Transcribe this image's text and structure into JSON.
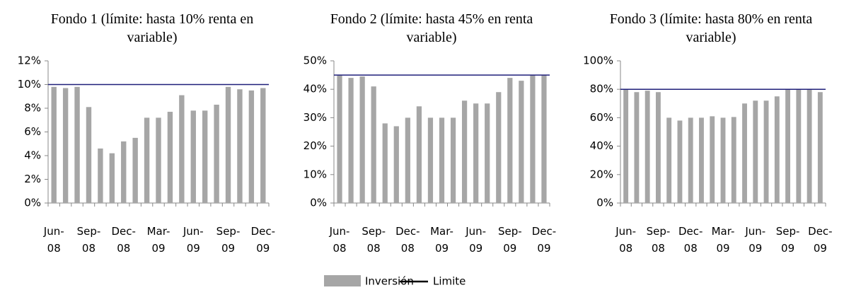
{
  "chart_data": [
    {
      "type": "bar",
      "title": "Fondo 1 (límite: hasta 10% renta en variable)",
      "categories": [
        "Jun-08",
        null,
        null,
        "Sep-08",
        null,
        null,
        "Dec-08",
        null,
        null,
        "Mar-09",
        null,
        null,
        "Jun-09",
        null,
        null,
        "Sep-09",
        null,
        null,
        "Dec-09"
      ],
      "series": [
        {
          "name": "Inversión",
          "color": "#a6a6a6",
          "values": [
            9.8,
            9.7,
            9.8,
            8.1,
            4.6,
            4.2,
            5.2,
            5.5,
            7.2,
            7.2,
            7.7,
            9.1,
            7.8,
            7.8,
            8.3,
            9.8,
            9.6,
            9.5,
            9.7
          ]
        },
        {
          "name": "Limite",
          "type": "line",
          "color": "#1f1f7a",
          "values": [
            10,
            10,
            10,
            10,
            10,
            10,
            10,
            10,
            10,
            10,
            10,
            10,
            10,
            10,
            10,
            10,
            10,
            10,
            10
          ]
        }
      ],
      "ylim": [
        0,
        12
      ],
      "yticks": [
        {
          "value": 0,
          "label": "0%"
        },
        {
          "value": 2,
          "label": "2%"
        },
        {
          "value": 4,
          "label": "4%"
        },
        {
          "value": 6,
          "label": "6%"
        },
        {
          "value": 8,
          "label": "8%"
        },
        {
          "value": 10,
          "label": "10%"
        },
        {
          "value": 12,
          "label": "12%"
        }
      ]
    },
    {
      "type": "bar",
      "title": "Fondo 2 (límite: hasta 45% en renta variable)",
      "categories": [
        "Jun-08",
        null,
        null,
        "Sep-08",
        null,
        null,
        "Dec-08",
        null,
        null,
        "Mar-09",
        null,
        null,
        "Jun-09",
        null,
        null,
        "Sep-09",
        null,
        null,
        "Dec-09"
      ],
      "series": [
        {
          "name": "Inversión",
          "color": "#a6a6a6",
          "values": [
            45,
            44,
            44.5,
            41,
            28,
            27,
            30,
            34,
            30,
            30,
            30,
            36,
            35,
            35,
            39,
            44,
            43,
            45,
            45
          ]
        },
        {
          "name": "Limite",
          "type": "line",
          "color": "#1f1f7a",
          "values": [
            45,
            45,
            45,
            45,
            45,
            45,
            45,
            45,
            45,
            45,
            45,
            45,
            45,
            45,
            45,
            45,
            45,
            45,
            45
          ]
        }
      ],
      "ylim": [
        0,
        50
      ],
      "yticks": [
        {
          "value": 0,
          "label": "0%"
        },
        {
          "value": 10,
          "label": "10%"
        },
        {
          "value": 20,
          "label": "20%"
        },
        {
          "value": 30,
          "label": "30%"
        },
        {
          "value": 40,
          "label": "40%"
        },
        {
          "value": 50,
          "label": "50%"
        }
      ]
    },
    {
      "type": "bar",
      "title": "Fondo 3 (límite: hasta 80% en renta variable)",
      "categories": [
        "Jun-08",
        null,
        null,
        "Sep-08",
        null,
        null,
        "Dec-08",
        null,
        null,
        "Mar-09",
        null,
        null,
        "Jun-09",
        null,
        null,
        "Sep-09",
        null,
        null,
        "Dec-09"
      ],
      "series": [
        {
          "name": "Inversión",
          "color": "#a6a6a6",
          "values": [
            80,
            78,
            79,
            78,
            60,
            58,
            60,
            60,
            61,
            60,
            60.5,
            70,
            72,
            72,
            75,
            80,
            80,
            80,
            78
          ]
        },
        {
          "name": "Limite",
          "type": "line",
          "color": "#1f1f7a",
          "values": [
            80,
            80,
            80,
            80,
            80,
            80,
            80,
            80,
            80,
            80,
            80,
            80,
            80,
            80,
            80,
            80,
            80,
            80,
            80
          ]
        }
      ],
      "ylim": [
        0,
        100
      ],
      "yticks": [
        {
          "value": 0,
          "label": "0%"
        },
        {
          "value": 20,
          "label": "20%"
        },
        {
          "value": 40,
          "label": "40%"
        },
        {
          "value": 60,
          "label": "60%"
        },
        {
          "value": 80,
          "label": "80%"
        },
        {
          "value": 100,
          "label": "100%"
        }
      ]
    }
  ]
}
